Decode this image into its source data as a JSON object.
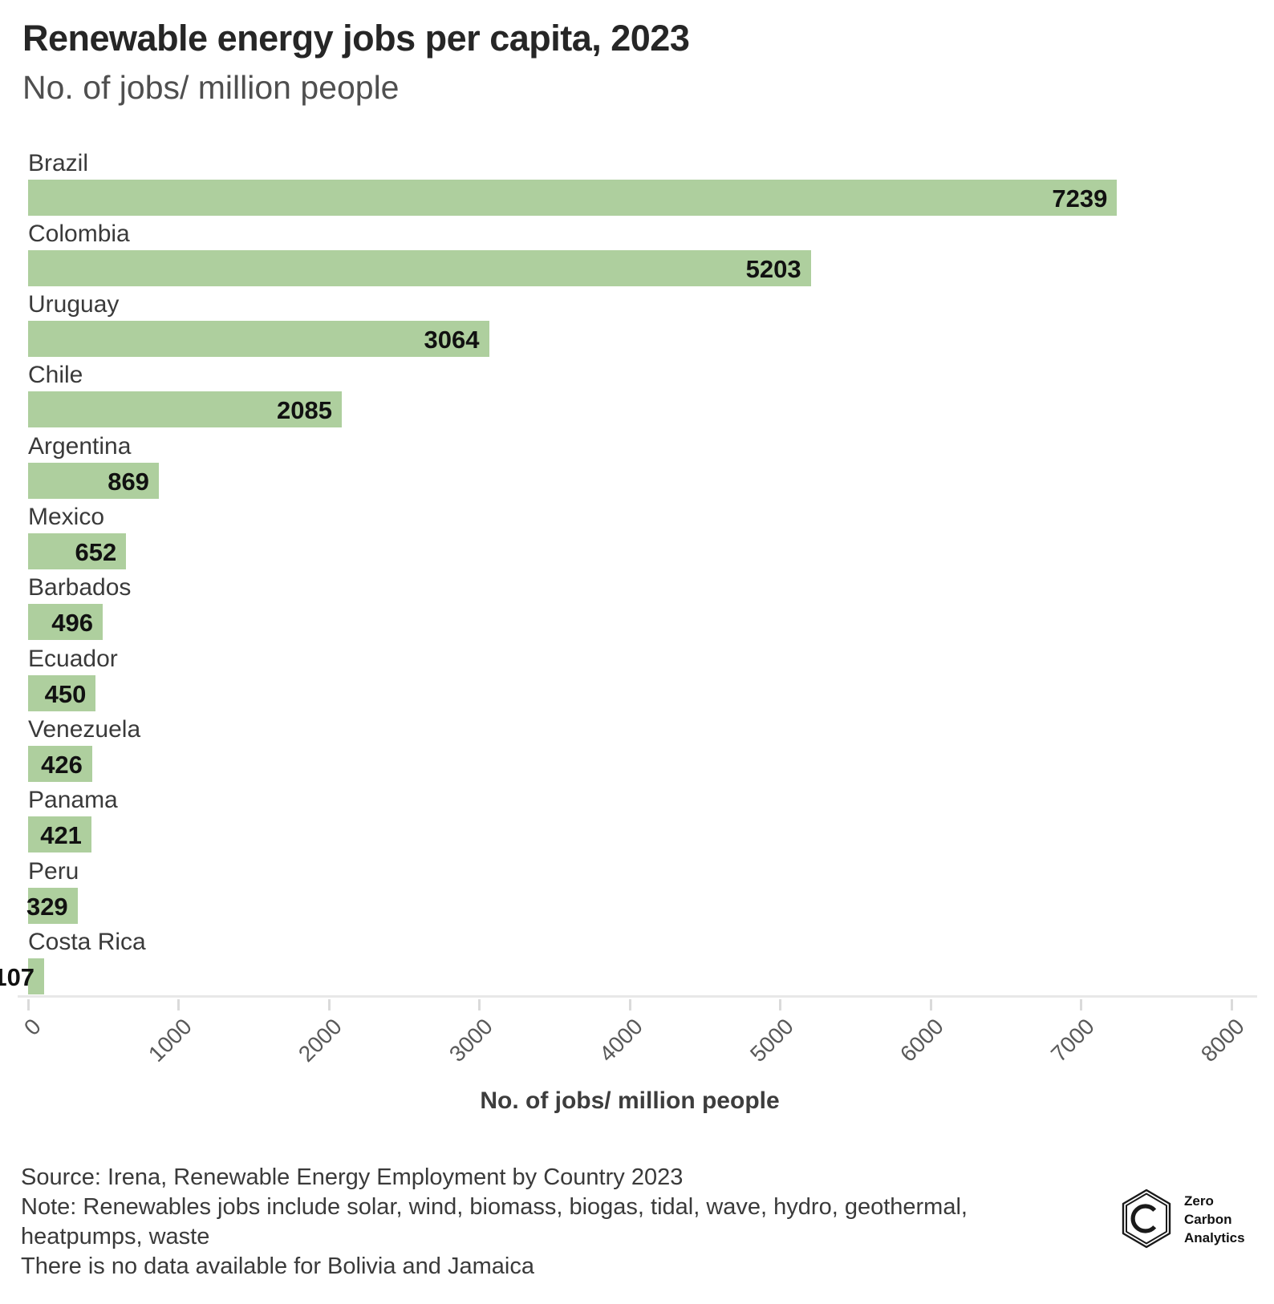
{
  "header": {
    "title": "Renewable energy jobs per capita, 2023",
    "subtitle": "No. of jobs/ million people"
  },
  "chart_data": {
    "type": "bar",
    "orientation": "horizontal",
    "title": "Renewable energy jobs per capita, 2023",
    "subtitle": "No. of jobs/ million people",
    "categories": [
      "Brazil",
      "Colombia",
      "Uruguay",
      "Chile",
      "Argentina",
      "Mexico",
      "Barbados",
      "Ecuador",
      "Venezuela",
      "Panama",
      "Peru",
      "Costa Rica"
    ],
    "values": [
      7239,
      5203,
      3064,
      2085,
      869,
      652,
      496,
      450,
      426,
      421,
      329,
      107
    ],
    "xlabel": "No. of jobs/ million people",
    "ylabel": "",
    "xlim": [
      0,
      8000
    ],
    "xticks": [
      0,
      1000,
      2000,
      3000,
      4000,
      5000,
      6000,
      7000,
      8000
    ],
    "grid": false,
    "legend": false,
    "bar_color": "#aecf9e",
    "value_label_color": "#111111",
    "category_label_color": "#3a3a3a"
  },
  "axis": {
    "xlabel": "No. of jobs/ million people"
  },
  "footer": {
    "lines": [
      "Source: Irena, Renewable Energy Employment by Country 2023",
      "Note: Renewables jobs include solar, wind, biomass, biogas, tidal, wave, hydro, geothermal,",
      "heatpumps, waste",
      "There is no data available for Bolivia and Jamaica"
    ]
  },
  "logo": {
    "line1": "Zero",
    "line2": "Carbon",
    "line3": "Analytics"
  }
}
